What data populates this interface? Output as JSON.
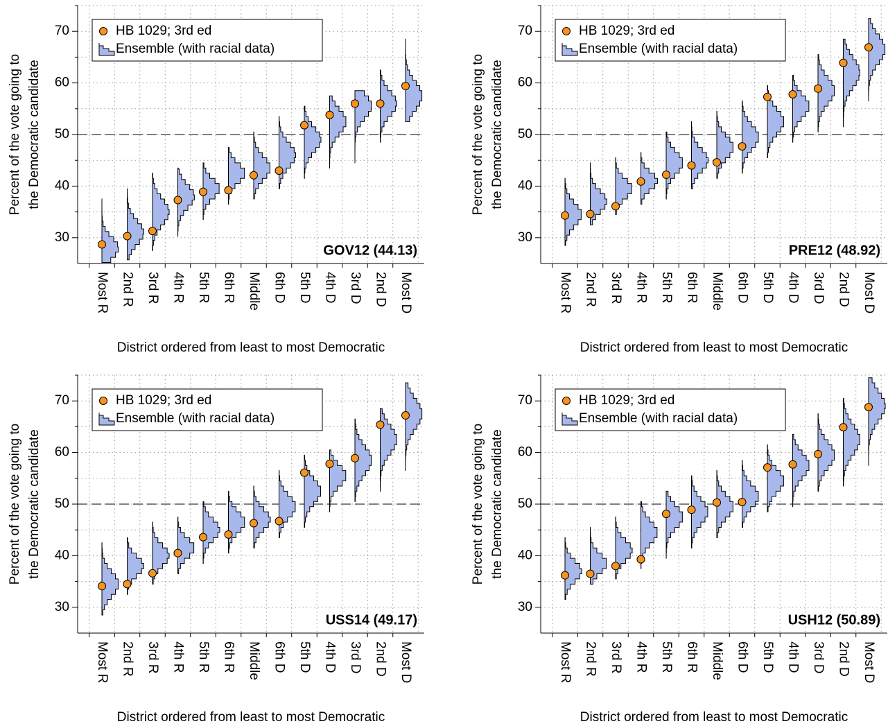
{
  "chart_data": [
    {
      "type": "ensemble",
      "annotation": "GOV12 (44.13)",
      "xlabel": "District ordered from least to most Democratic",
      "ylabel": [
        "Percent of the vote going to",
        "the Democratic candidate"
      ],
      "categories": [
        "Most R",
        "2nd R",
        "3rd R",
        "4th R",
        "5th R",
        "6th R",
        "Middle",
        "6th D",
        "5th D",
        "4th D",
        "3rd D",
        "2nd D",
        "Most D"
      ],
      "series": [
        {
          "name": "HB 1029; 3rd ed",
          "color": "#f7941d",
          "values": [
            28.7,
            30.3,
            31.3,
            37.3,
            38.9,
            39.2,
            42.1,
            43.0,
            51.8,
            53.8,
            56.0,
            56.0,
            59.4
          ]
        },
        {
          "name": "Ensemble (with racial data)",
          "color": "#a8b8ea",
          "low": [
            25.2,
            25.7,
            27.5,
            30.3,
            33.5,
            36.5,
            37.5,
            39.5,
            41.5,
            43.5,
            44.5,
            48.5,
            52.5
          ],
          "median": [
            28,
            31,
            35,
            38,
            39.5,
            42.5,
            43.5,
            46,
            49,
            52.5,
            55.5,
            56,
            57.5
          ],
          "high": [
            37.5,
            39.5,
            42.5,
            43.5,
            44.5,
            47.5,
            50.5,
            53.5,
            55.5,
            57.5,
            58.5,
            62.5,
            68.5
          ]
        }
      ],
      "ylim": [
        25,
        75
      ],
      "yticks": [
        30,
        40,
        50,
        60,
        70
      ],
      "minor_yticks": [
        35,
        45,
        55,
        65,
        75
      ],
      "hline": 50,
      "grid": true,
      "legend": "upper left"
    },
    {
      "type": "ensemble",
      "annotation": "PRE12 (48.92)",
      "xlabel": "District ordered from least to most Democratic",
      "ylabel": [
        "Percent of the vote going to",
        "the Democratic candidate"
      ],
      "categories": [
        "Most R",
        "2nd R",
        "3rd R",
        "4th R",
        "5th R",
        "6th R",
        "Middle",
        "6th D",
        "5th D",
        "4th D",
        "3rd D",
        "2nd D",
        "Most D"
      ],
      "series": [
        {
          "name": "HB 1029; 3rd ed",
          "color": "#f7941d",
          "values": [
            34.3,
            34.6,
            36.1,
            40.9,
            42.2,
            44.0,
            44.6,
            47.7,
            57.3,
            57.8,
            58.9,
            63.9,
            66.9
          ]
        },
        {
          "name": "Ensemble (with racial data)",
          "color": "#a8b8ea",
          "low": [
            28.5,
            32.5,
            34.5,
            36.5,
            37.5,
            39.5,
            41.5,
            42.5,
            45.5,
            48.5,
            50.5,
            51.5,
            56.5
          ],
          "median": [
            34.5,
            37,
            39.5,
            41,
            44.5,
            45,
            47.5,
            49.5,
            52.5,
            55.5,
            58.5,
            62,
            66.5
          ],
          "high": [
            41.5,
            44.5,
            45.5,
            46.5,
            50.5,
            52.5,
            54.5,
            56.5,
            59.5,
            61.5,
            65.5,
            68.5,
            72.5
          ]
        }
      ],
      "ylim": [
        25,
        75
      ],
      "yticks": [
        30,
        40,
        50,
        60,
        70
      ],
      "minor_yticks": [
        35,
        45,
        55,
        65,
        75
      ],
      "hline": 50,
      "grid": true,
      "legend": "upper left"
    },
    {
      "type": "ensemble",
      "annotation": "USS14 (49.17)",
      "xlabel": "District ordered from least to most Democratic",
      "ylabel": [
        "Percent of the vote going to",
        "the Democratic candidate"
      ],
      "categories": [
        "Most R",
        "2nd R",
        "3rd R",
        "4th R",
        "5th R",
        "6th R",
        "Middle",
        "6th D",
        "5th D",
        "4th D",
        "3rd D",
        "2nd D",
        "Most D"
      ],
      "series": [
        {
          "name": "HB 1029; 3rd ed",
          "color": "#f7941d",
          "values": [
            34.1,
            34.5,
            36.6,
            40.5,
            43.6,
            44.1,
            46.3,
            46.7,
            56.1,
            57.8,
            58.9,
            65.4,
            67.2
          ]
        },
        {
          "name": "Ensemble (with racial data)",
          "color": "#a8b8ea",
          "low": [
            28.5,
            32.5,
            34.5,
            36.5,
            38.5,
            40.5,
            41.5,
            43.5,
            45.5,
            48.5,
            50.5,
            52.5,
            56.5
          ],
          "median": [
            34.5,
            38,
            40,
            41.5,
            45,
            46.5,
            47,
            49.5,
            52.5,
            55.5,
            58.5,
            62.5,
            67.5
          ],
          "high": [
            42.5,
            43.5,
            46.5,
            47.5,
            50.5,
            52.5,
            53.5,
            56.5,
            59.5,
            60.5,
            66.5,
            68.5,
            73.5
          ]
        }
      ],
      "ylim": [
        25,
        75
      ],
      "yticks": [
        30,
        40,
        50,
        60,
        70
      ],
      "minor_yticks": [
        35,
        45,
        55,
        65,
        75
      ],
      "hline": 50,
      "grid": true,
      "legend": "upper left"
    },
    {
      "type": "ensemble",
      "annotation": "USH12 (50.89)",
      "xlabel": "District ordered from least to most Democratic",
      "ylabel": [
        "Percent of the vote going to",
        "the Democratic candidate"
      ],
      "categories": [
        "Most R",
        "2nd R",
        "3rd R",
        "4th R",
        "5th R",
        "6th R",
        "Middle",
        "6th D",
        "5th D",
        "4th D",
        "3rd D",
        "2nd D",
        "Most D"
      ],
      "series": [
        {
          "name": "HB 1029; 3rd ed",
          "color": "#f7941d",
          "values": [
            36.2,
            36.5,
            38.0,
            39.3,
            48.1,
            48.9,
            50.3,
            50.4,
            57.1,
            57.7,
            59.7,
            64.9,
            68.8
          ]
        },
        {
          "name": "Ensemble (with racial data)",
          "color": "#a8b8ea",
          "low": [
            31.5,
            34.5,
            35.5,
            37.5,
            39.5,
            41.5,
            43.5,
            45.5,
            48.5,
            49.5,
            52.5,
            53.5,
            57.5
          ],
          "median": [
            37,
            38.5,
            41,
            44.5,
            47.5,
            48.5,
            49.5,
            51.5,
            54.5,
            57.5,
            59.5,
            62.5,
            69
          ],
          "high": [
            43.5,
            45.5,
            47.5,
            50.5,
            52.5,
            55.5,
            56.5,
            58.5,
            61.5,
            63.5,
            67.5,
            70.5,
            74.5
          ]
        }
      ],
      "ylim": [
        25,
        75
      ],
      "yticks": [
        30,
        40,
        50,
        60,
        70
      ],
      "minor_yticks": [
        35,
        45,
        55,
        65,
        75
      ],
      "hline": 50,
      "grid": true,
      "legend": "upper left"
    }
  ]
}
